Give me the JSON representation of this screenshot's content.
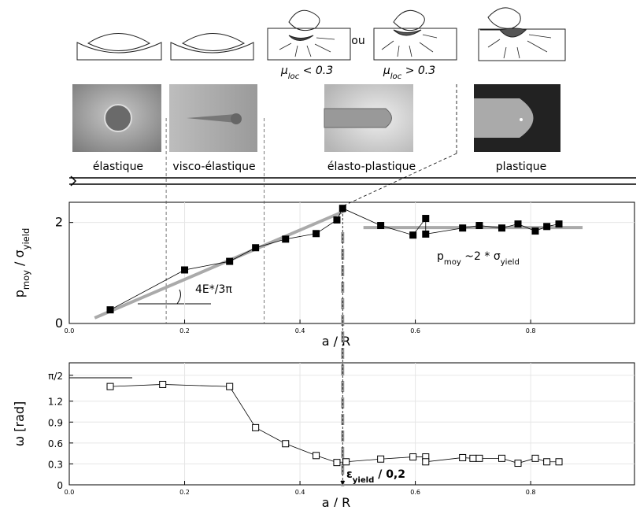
{
  "illustration": {
    "regimes": [
      "élastique",
      "visco-élastique",
      "élasto-plastique",
      "plastique"
    ],
    "conditions": [
      [
        {
          "text": "μ"
        },
        {
          "text": "loc",
          "sub": true
        },
        {
          "text": " < 0.3"
        }
      ],
      [
        {
          "text": "μ"
        },
        {
          "text": "loc",
          "sub": true
        },
        {
          "text": " > 0.3"
        }
      ]
    ],
    "separator": "ou"
  },
  "chart_data": [
    {
      "type": "line",
      "marker": "filled",
      "xlabel": [
        {
          "text": "a  /  R"
        }
      ],
      "ylabel": [
        {
          "text": "p"
        },
        {
          "text": "moy",
          "sub": true
        },
        {
          "text": "  /  σ"
        },
        {
          "text": "yield",
          "sub": true
        }
      ],
      "xlim": [
        0,
        0.98
      ],
      "ylim": [
        0,
        2.4
      ],
      "xticks": [
        {
          "value": 0,
          "label": "0.0"
        },
        {
          "value": 0.2,
          "label": "0.2"
        },
        {
          "value": 0.4,
          "label": "0.4"
        },
        {
          "value": 0.6,
          "label": "0.6"
        },
        {
          "value": 0.8,
          "label": "0.8"
        }
      ],
      "yticks": [
        0,
        2
      ],
      "grid": true,
      "series": [
        {
          "color": "#000000",
          "x": [
            0.071,
            0.2,
            0.278,
            0.323,
            0.375,
            0.428,
            0.464,
            0.474,
            0.54,
            0.596,
            0.618,
            0.618,
            0.682,
            0.711,
            0.75,
            0.778,
            0.808,
            0.828,
            0.849
          ],
          "values": [
            0.27,
            1.06,
            1.23,
            1.5,
            1.67,
            1.78,
            2.05,
            2.28,
            1.94,
            1.75,
            2.08,
            1.77,
            1.89,
            1.94,
            1.89,
            1.97,
            1.83,
            1.92,
            1.97
          ]
        }
      ],
      "fits": [
        {
          "color": "#aaaaaa",
          "x": [
            0.044,
            0.478
          ],
          "y": [
            0.11,
            2.23
          ]
        },
        {
          "color": "#aaaaaa",
          "x": [
            0.51,
            0.89
          ],
          "y": [
            1.9,
            1.9
          ]
        }
      ],
      "vlines": [
        0.168,
        0.338
      ],
      "annotations": [
        [
          {
            "text": "4E*/3π"
          }
        ],
        [
          {
            "text": "p"
          },
          {
            "text": "moy",
            "sub": true
          },
          {
            "text": " ~2 * σ"
          },
          {
            "text": "yield",
            "sub": true
          }
        ]
      ]
    },
    {
      "type": "line",
      "marker": "open",
      "xlabel": [
        {
          "text": "a  /  R"
        }
      ],
      "ylabel": [
        {
          "text": "ω [rad]"
        }
      ],
      "xlim": [
        0,
        0.98
      ],
      "ylim": [
        0,
        1.75
      ],
      "xticks": [
        {
          "value": 0,
          "label": "0.0"
        },
        {
          "value": 0.2,
          "label": "0.2"
        },
        {
          "value": 0.4,
          "label": "0.4"
        },
        {
          "value": 0.6,
          "label": "0.6"
        },
        {
          "value": 0.8,
          "label": "0.8"
        }
      ],
      "yticks": [
        0,
        0.3,
        0.6,
        0.9,
        1.2,
        {
          "value": 1.5708,
          "label": "π/2"
        }
      ],
      "grid": true,
      "series": [
        {
          "color": "#000000",
          "x": [
            0.071,
            0.162,
            0.278,
            0.323,
            0.375,
            0.428,
            0.464,
            0.48,
            0.54,
            0.596,
            0.618,
            0.618,
            0.682,
            0.7,
            0.711,
            0.75,
            0.778,
            0.808,
            0.828,
            0.849
          ],
          "values": [
            1.41,
            1.44,
            1.41,
            0.82,
            0.59,
            0.42,
            0.32,
            0.33,
            0.37,
            0.4,
            0.4,
            0.33,
            0.39,
            0.38,
            0.38,
            0.38,
            0.31,
            0.38,
            0.33,
            0.33
          ]
        }
      ],
      "yield_x": 0.474,
      "annotations": [
        [
          {
            "text": "ε",
            "bold": true
          },
          {
            "text": "yield",
            "sub": true,
            "bold": true
          },
          {
            "text": " / 0,2",
            "bold": true
          }
        ]
      ]
    }
  ]
}
